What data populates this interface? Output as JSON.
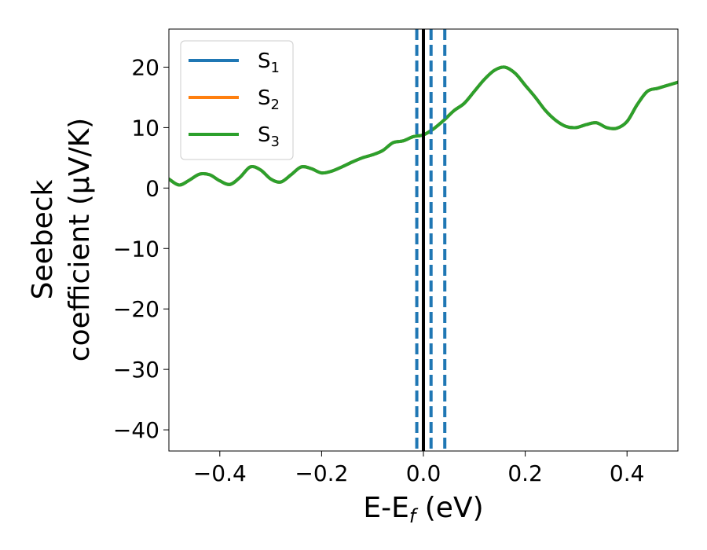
{
  "chart_data": {
    "type": "line",
    "xlabel_main": "E-E",
    "xlabel_sub": "f",
    "xlabel_unit": " (eV)",
    "ylabel_line1": "Seebeck",
    "ylabel_line2": "coefficient  (μV/K)",
    "xlim": [
      -0.5,
      0.5
    ],
    "ylim": [
      -43.5,
      26.3
    ],
    "x_ticks": [
      -0.4,
      -0.2,
      0.0,
      0.2,
      0.4
    ],
    "x_tick_labels": [
      "−0.4",
      "−0.2",
      "0.0",
      "0.2",
      "0.4"
    ],
    "y_ticks": [
      20,
      10,
      0,
      -10,
      -20,
      -30,
      -40
    ],
    "y_tick_labels": [
      "20",
      "10",
      "0",
      "−10",
      "−20",
      "−30",
      "−40"
    ],
    "legend": {
      "placement": "top-left",
      "entries": [
        {
          "label": "S",
          "sub": "1",
          "color": "#1f77b4"
        },
        {
          "label": "S",
          "sub": "2",
          "color": "#ff7f0e"
        },
        {
          "label": "S",
          "sub": "3",
          "color": "#2ca02c"
        }
      ]
    },
    "vlines": [
      {
        "x": 0.0,
        "color": "#000000",
        "style": "solid"
      },
      {
        "x": -0.013,
        "color": "#1f77b4",
        "style": "dashed"
      },
      {
        "x": 0.015,
        "color": "#1f77b4",
        "style": "dashed"
      },
      {
        "x": 0.042,
        "color": "#1f77b4",
        "style": "dashed"
      }
    ],
    "series": [
      {
        "name": "S1",
        "color": "#1f77b4",
        "x": [
          -0.5,
          -0.48,
          -0.46,
          -0.44,
          -0.42,
          -0.4,
          -0.38,
          -0.36,
          -0.34,
          -0.32,
          -0.3,
          -0.28,
          -0.26,
          -0.24,
          -0.22,
          -0.2,
          -0.18,
          -0.16,
          -0.14,
          -0.12,
          -0.1,
          -0.08,
          -0.06,
          -0.04,
          -0.02,
          0.0,
          0.02,
          0.04,
          0.06,
          0.08,
          0.1,
          0.12,
          0.14,
          0.16,
          0.18,
          0.2,
          0.22,
          0.24,
          0.26,
          0.28,
          0.3,
          0.32,
          0.34,
          0.36,
          0.38,
          0.4,
          0.42,
          0.44,
          0.46,
          0.48,
          0.5
        ],
        "y": [
          1.5,
          0.5,
          1.3,
          2.3,
          2.2,
          1.2,
          0.6,
          1.8,
          3.5,
          3.0,
          1.5,
          1.0,
          2.2,
          3.5,
          3.2,
          2.5,
          2.8,
          3.5,
          4.3,
          5.0,
          5.5,
          6.2,
          7.5,
          7.8,
          8.5,
          8.8,
          9.8,
          11.2,
          12.8,
          14.0,
          16.0,
          18.0,
          19.5,
          20.0,
          19.0,
          17.0,
          15.0,
          12.8,
          11.2,
          10.2,
          10.0,
          10.5,
          10.8,
          10.0,
          9.9,
          11.0,
          13.8,
          16.0,
          16.5,
          17.0,
          17.5
        ]
      },
      {
        "name": "S2",
        "color": "#ff7f0e",
        "x": [
          -0.5,
          -0.48,
          -0.46,
          -0.44,
          -0.42,
          -0.4,
          -0.38,
          -0.36,
          -0.34,
          -0.32,
          -0.3,
          -0.28,
          -0.26,
          -0.24,
          -0.22,
          -0.2,
          -0.18,
          -0.16,
          -0.14,
          -0.12,
          -0.1,
          -0.08,
          -0.06,
          -0.04,
          -0.02,
          0.0,
          0.02,
          0.04,
          0.06,
          0.08,
          0.1,
          0.12,
          0.14,
          0.16,
          0.18,
          0.2,
          0.22,
          0.24,
          0.26,
          0.28,
          0.3,
          0.32,
          0.34,
          0.36,
          0.38,
          0.4,
          0.42,
          0.44,
          0.46,
          0.48,
          0.5
        ],
        "y": [
          1.5,
          0.5,
          1.3,
          2.3,
          2.2,
          1.2,
          0.6,
          1.8,
          3.5,
          3.0,
          1.5,
          1.0,
          2.2,
          3.5,
          3.2,
          2.5,
          2.8,
          3.5,
          4.3,
          5.0,
          5.5,
          6.2,
          7.5,
          7.8,
          8.5,
          8.8,
          9.8,
          11.2,
          12.8,
          14.0,
          16.0,
          18.0,
          19.5,
          20.0,
          19.0,
          17.0,
          15.0,
          12.8,
          11.2,
          10.2,
          10.0,
          10.5,
          10.8,
          10.0,
          9.9,
          11.0,
          13.8,
          16.0,
          16.5,
          17.0,
          17.5
        ]
      },
      {
        "name": "S3",
        "color": "#2ca02c",
        "x": [
          -0.5,
          -0.48,
          -0.46,
          -0.44,
          -0.42,
          -0.4,
          -0.38,
          -0.36,
          -0.34,
          -0.32,
          -0.3,
          -0.28,
          -0.26,
          -0.24,
          -0.22,
          -0.2,
          -0.18,
          -0.16,
          -0.14,
          -0.12,
          -0.1,
          -0.08,
          -0.06,
          -0.04,
          -0.02,
          0.0,
          0.02,
          0.04,
          0.06,
          0.08,
          0.1,
          0.12,
          0.14,
          0.16,
          0.18,
          0.2,
          0.22,
          0.24,
          0.26,
          0.28,
          0.3,
          0.32,
          0.34,
          0.36,
          0.38,
          0.4,
          0.42,
          0.44,
          0.46,
          0.48,
          0.5
        ],
        "y": [
          1.5,
          0.5,
          1.3,
          2.3,
          2.2,
          1.2,
          0.6,
          1.8,
          3.5,
          3.0,
          1.5,
          1.0,
          2.2,
          3.5,
          3.2,
          2.5,
          2.8,
          3.5,
          4.3,
          5.0,
          5.5,
          6.2,
          7.5,
          7.8,
          8.5,
          8.8,
          9.8,
          11.2,
          12.8,
          14.0,
          16.0,
          18.0,
          19.5,
          20.0,
          19.0,
          17.0,
          15.0,
          12.8,
          11.2,
          10.2,
          10.0,
          10.5,
          10.8,
          10.0,
          9.9,
          11.0,
          13.8,
          16.0,
          16.5,
          17.0,
          17.5
        ]
      }
    ]
  }
}
